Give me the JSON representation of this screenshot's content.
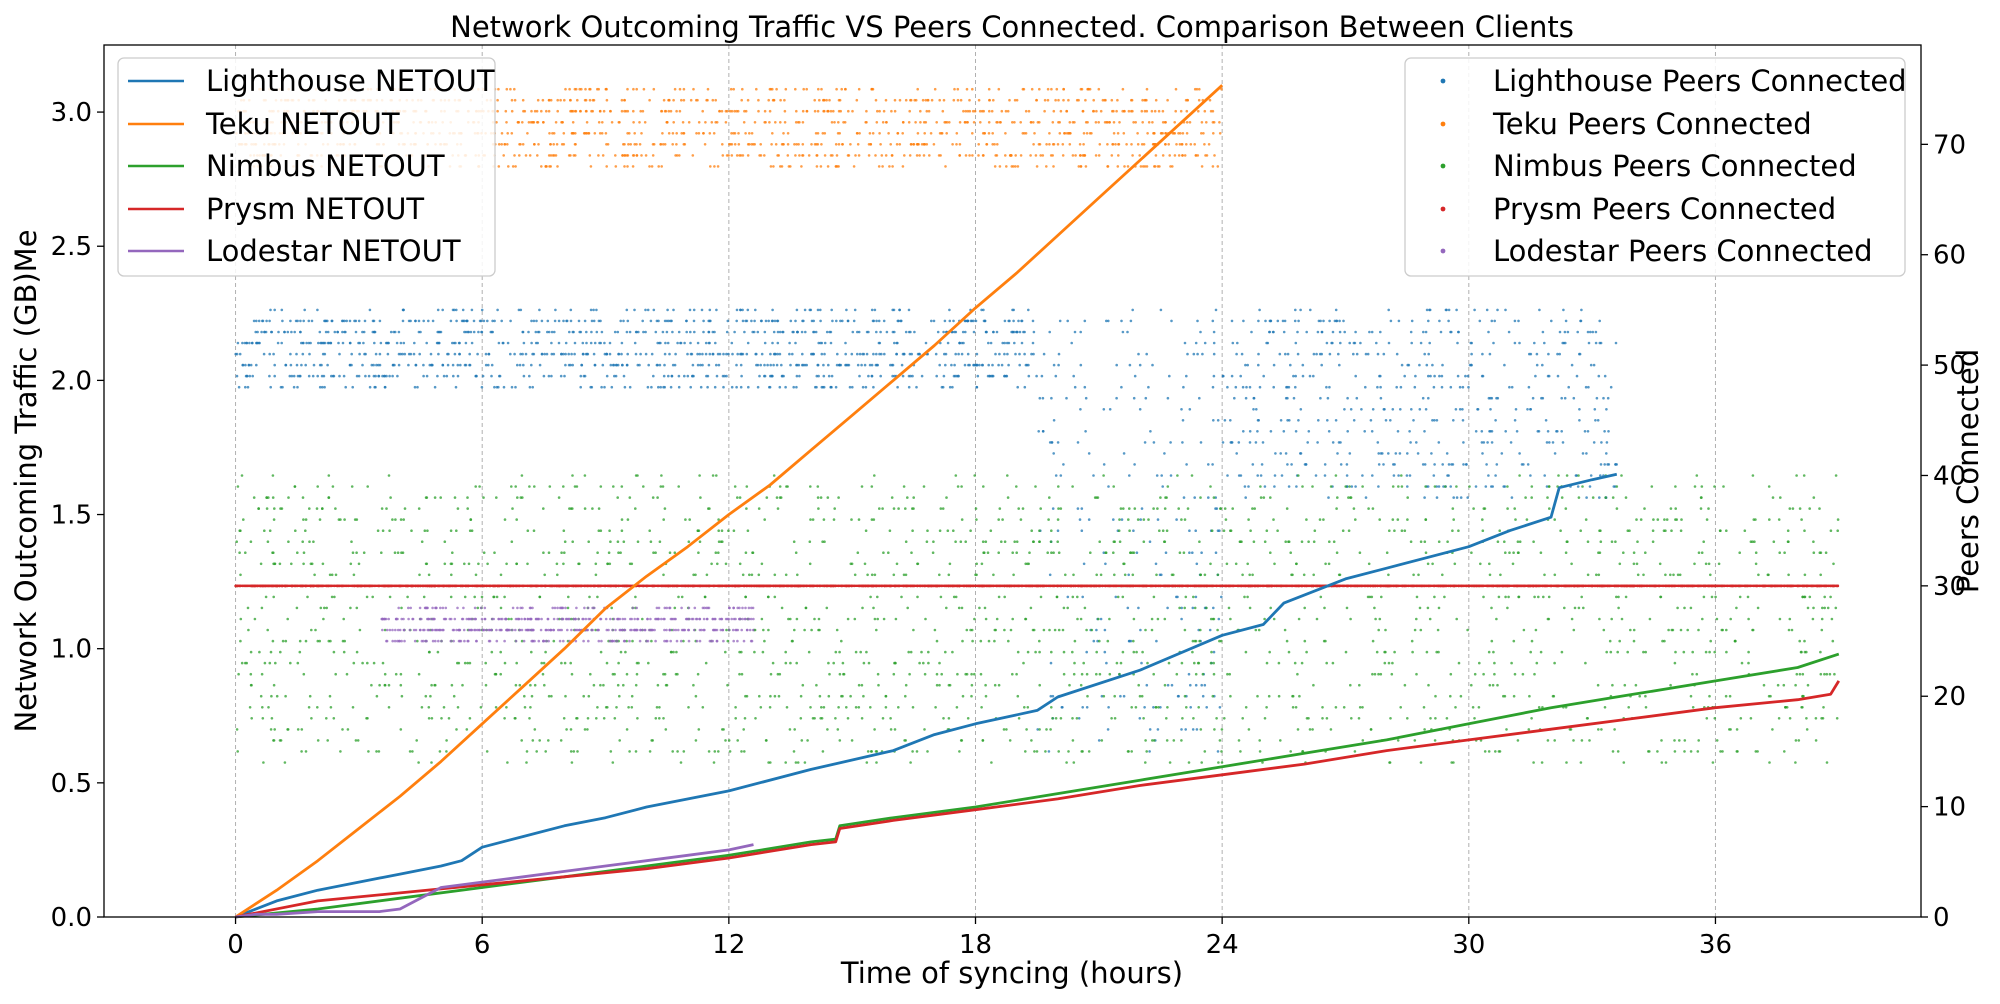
{
  "chart_data": {
    "type": "line",
    "title": "Network Outcoming Traffic VS Peers Connected. Comparison Between Clients",
    "xlabel": "Time of syncing (hours)",
    "ylabel_left": "Network Outcoming Traffic (GB)Me",
    "ylabel_right": "Peers Connected",
    "xlim": [
      -3.2,
      41.0
    ],
    "ylim_left": [
      0,
      3.25
    ],
    "ylim_right": [
      0,
      79
    ],
    "x_ticks": [
      0,
      6,
      12,
      18,
      24,
      30,
      36
    ],
    "y_left_ticks": [
      0.0,
      0.5,
      1.0,
      1.5,
      2.0,
      2.5,
      3.0
    ],
    "y_right_ticks": [
      0,
      10,
      20,
      30,
      40,
      50,
      60,
      70
    ],
    "grid": "vertical dashed",
    "legend_left_position": "top-left",
    "legend_right_position": "top-right",
    "series": [
      {
        "name": "Lighthouse NETOUT",
        "color": "#1f77b4",
        "axis": "left",
        "x": [
          0,
          1,
          2,
          3,
          4,
          5,
          5.5,
          6,
          7,
          8,
          9,
          10,
          12,
          14,
          16,
          17,
          18,
          19.5,
          20,
          22,
          24,
          25,
          25.5,
          27,
          28,
          30,
          31,
          32,
          32.2,
          33,
          33.6
        ],
        "y": [
          0,
          0.06,
          0.1,
          0.13,
          0.16,
          0.19,
          0.21,
          0.26,
          0.3,
          0.34,
          0.37,
          0.41,
          0.47,
          0.55,
          0.62,
          0.68,
          0.72,
          0.77,
          0.82,
          0.92,
          1.05,
          1.09,
          1.17,
          1.26,
          1.3,
          1.38,
          1.44,
          1.49,
          1.6,
          1.63,
          1.65
        ]
      },
      {
        "name": "Teku NETOUT",
        "color": "#ff7f0e",
        "axis": "left",
        "x": [
          0,
          1,
          2,
          3,
          4,
          5,
          6,
          7,
          8,
          9,
          10,
          11,
          12,
          13,
          14,
          15,
          16,
          17,
          18,
          19,
          20,
          21,
          22,
          23,
          24
        ],
        "y": [
          0,
          0.1,
          0.21,
          0.33,
          0.45,
          0.58,
          0.72,
          0.86,
          1.0,
          1.15,
          1.27,
          1.38,
          1.5,
          1.61,
          1.74,
          1.87,
          2.0,
          2.13,
          2.27,
          2.4,
          2.54,
          2.68,
          2.82,
          2.96,
          3.1
        ]
      },
      {
        "name": "Nimbus NETOUT",
        "color": "#2ca02c",
        "axis": "left",
        "x": [
          0,
          2,
          4,
          6,
          8,
          10,
          12,
          14,
          14.6,
          14.7,
          16,
          18,
          20,
          22,
          24,
          26,
          28,
          30,
          32,
          34,
          36,
          38,
          39
        ],
        "y": [
          0,
          0.03,
          0.07,
          0.11,
          0.15,
          0.19,
          0.23,
          0.28,
          0.29,
          0.34,
          0.37,
          0.41,
          0.46,
          0.51,
          0.56,
          0.61,
          0.66,
          0.72,
          0.78,
          0.83,
          0.88,
          0.93,
          0.98
        ]
      },
      {
        "name": "Prysm NETOUT",
        "color": "#d62728",
        "axis": "left",
        "x": [
          0,
          2,
          4,
          6,
          8,
          10,
          12,
          14,
          14.6,
          14.7,
          16,
          18,
          20,
          22,
          24,
          26,
          28,
          30,
          32,
          34,
          36,
          38,
          38.8,
          39
        ],
        "y": [
          0,
          0.06,
          0.09,
          0.12,
          0.15,
          0.18,
          0.22,
          0.27,
          0.28,
          0.33,
          0.36,
          0.4,
          0.44,
          0.49,
          0.53,
          0.57,
          0.62,
          0.66,
          0.7,
          0.74,
          0.78,
          0.81,
          0.83,
          0.88
        ]
      },
      {
        "name": "Lodestar NETOUT",
        "color": "#9467bd",
        "axis": "left",
        "x": [
          0,
          0.5,
          1,
          2,
          3,
          3.5,
          4,
          4.5,
          5,
          6,
          7,
          8,
          9,
          10,
          11,
          12,
          12.6
        ],
        "y": [
          0,
          0.01,
          0.01,
          0.02,
          0.02,
          0.02,
          0.03,
          0.07,
          0.11,
          0.13,
          0.15,
          0.17,
          0.19,
          0.21,
          0.23,
          0.25,
          0.27
        ]
      },
      {
        "name": "Lighthouse Peers Connected",
        "color": "#1f77b4",
        "axis": "right",
        "style": "scatter",
        "segments": [
          {
            "x": [
              0,
              19.5
            ],
            "y": [
              48,
              55
            ]
          },
          {
            "x": [
              19.5,
              24
            ],
            "y": [
              15,
              55
            ]
          },
          {
            "x": [
              24,
              33.6
            ],
            "y": [
              38,
              55
            ]
          }
        ]
      },
      {
        "name": "Teku Peers Connected",
        "color": "#ff7f0e",
        "axis": "right",
        "style": "scatter",
        "segments": [
          {
            "x": [
              0,
              24
            ],
            "y": [
              68,
              75
            ]
          }
        ]
      },
      {
        "name": "Nimbus Peers Connected",
        "color": "#2ca02c",
        "axis": "right",
        "style": "scatter",
        "segments": [
          {
            "x": [
              0,
              39
            ],
            "y": [
              14,
              40
            ]
          }
        ]
      },
      {
        "name": "Prysm Peers Connected",
        "color": "#d62728",
        "axis": "right",
        "style": "scatter",
        "segments": [
          {
            "x": [
              0,
              39
            ],
            "y": [
              30,
              30
            ]
          }
        ]
      },
      {
        "name": "Lodestar Peers Connected",
        "color": "#9467bd",
        "axis": "right",
        "style": "scatter",
        "segments": [
          {
            "x": [
              3.5,
              12.6
            ],
            "y": [
              25,
              28
            ]
          }
        ]
      }
    ]
  }
}
